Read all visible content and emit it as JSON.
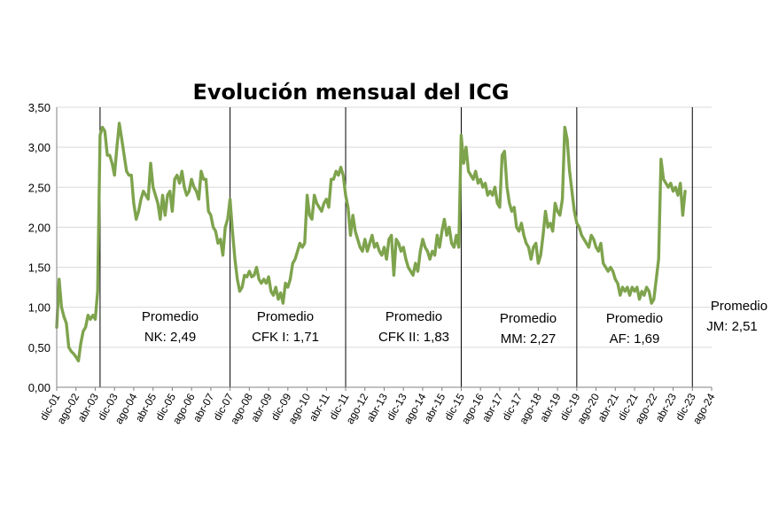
{
  "chart_data": {
    "type": "line",
    "title": "Evolución mensual del ICG",
    "ylim": [
      0,
      3.5
    ],
    "yticks": [
      "0,00",
      "0,50",
      "1,00",
      "1,50",
      "2,00",
      "2,50",
      "3,00",
      "3,50"
    ],
    "xlabels": [
      "dic-01",
      "ago-02",
      "abr-03",
      "dic-03",
      "ago-04",
      "abr-05",
      "dic-05",
      "ago-06",
      "abr-07",
      "dic-07",
      "ago-08",
      "abr-09",
      "dic-09",
      "ago-10",
      "abr-11",
      "dic-11",
      "ago-12",
      "abr-13",
      "dic-13",
      "ago-14",
      "abr-15",
      "dic-15",
      "ago-16",
      "abr-17",
      "dic-17",
      "ago-18",
      "abr-19",
      "dic-19",
      "ago-20",
      "abr-21",
      "dic-21",
      "ago-22",
      "abr-23",
      "dic-23",
      "ago-24"
    ],
    "x_start": "2001-12",
    "x_end": "2024-08",
    "grid": true,
    "legend": "none",
    "series_color": "#7ea34d",
    "series": [
      {
        "points": [
          [
            "2001-12",
            0.75
          ],
          [
            "2002-01",
            1.35
          ],
          [
            "2002-02",
            1.0
          ],
          [
            "2002-03",
            0.88
          ],
          [
            "2002-04",
            0.8
          ],
          [
            "2002-05",
            0.5
          ],
          [
            "2002-06",
            0.45
          ],
          [
            "2002-07",
            0.42
          ],
          [
            "2002-08",
            0.38
          ],
          [
            "2002-09",
            0.33
          ],
          [
            "2002-10",
            0.55
          ],
          [
            "2002-11",
            0.7
          ],
          [
            "2002-12",
            0.75
          ],
          [
            "2003-01",
            0.9
          ],
          [
            "2003-02",
            0.85
          ],
          [
            "2003-03",
            0.9
          ],
          [
            "2003-04",
            0.85
          ],
          [
            "2003-05",
            1.2
          ],
          [
            "2003-06",
            3.15
          ],
          [
            "2003-07",
            3.25
          ],
          [
            "2003-08",
            3.2
          ],
          [
            "2003-09",
            2.9
          ],
          [
            "2003-10",
            2.9
          ],
          [
            "2003-11",
            2.8
          ],
          [
            "2003-12",
            2.65
          ],
          [
            "2004-01",
            3.0
          ],
          [
            "2004-02",
            3.3
          ],
          [
            "2004-03",
            3.1
          ],
          [
            "2004-04",
            2.9
          ],
          [
            "2004-05",
            2.7
          ],
          [
            "2004-06",
            2.65
          ],
          [
            "2004-07",
            2.65
          ],
          [
            "2004-08",
            2.3
          ],
          [
            "2004-09",
            2.1
          ],
          [
            "2004-10",
            2.2
          ],
          [
            "2004-11",
            2.35
          ],
          [
            "2004-12",
            2.45
          ],
          [
            "2005-01",
            2.4
          ],
          [
            "2005-02",
            2.35
          ],
          [
            "2005-03",
            2.8
          ],
          [
            "2005-04",
            2.5
          ],
          [
            "2005-05",
            2.4
          ],
          [
            "2005-06",
            2.3
          ],
          [
            "2005-07",
            2.1
          ],
          [
            "2005-08",
            2.4
          ],
          [
            "2005-09",
            2.15
          ],
          [
            "2005-10",
            2.4
          ],
          [
            "2005-11",
            2.45
          ],
          [
            "2005-12",
            2.2
          ],
          [
            "2006-01",
            2.6
          ],
          [
            "2006-02",
            2.65
          ],
          [
            "2006-03",
            2.55
          ],
          [
            "2006-04",
            2.7
          ],
          [
            "2006-05",
            2.5
          ],
          [
            "2006-06",
            2.4
          ],
          [
            "2006-07",
            2.45
          ],
          [
            "2006-08",
            2.6
          ],
          [
            "2006-09",
            2.5
          ],
          [
            "2006-10",
            2.45
          ],
          [
            "2006-11",
            2.35
          ],
          [
            "2006-12",
            2.7
          ],
          [
            "2007-01",
            2.6
          ],
          [
            "2007-02",
            2.6
          ],
          [
            "2007-03",
            2.2
          ],
          [
            "2007-04",
            2.15
          ],
          [
            "2007-05",
            2.0
          ],
          [
            "2007-06",
            1.95
          ],
          [
            "2007-07",
            1.8
          ],
          [
            "2007-08",
            1.85
          ],
          [
            "2007-09",
            1.65
          ],
          [
            "2007-10",
            2.0
          ],
          [
            "2007-11",
            2.1
          ],
          [
            "2007-12",
            2.35
          ],
          [
            "2008-01",
            1.95
          ],
          [
            "2008-02",
            1.6
          ],
          [
            "2008-03",
            1.35
          ],
          [
            "2008-04",
            1.2
          ],
          [
            "2008-05",
            1.25
          ],
          [
            "2008-06",
            1.4
          ],
          [
            "2008-07",
            1.38
          ],
          [
            "2008-08",
            1.45
          ],
          [
            "2008-09",
            1.38
          ],
          [
            "2008-10",
            1.4
          ],
          [
            "2008-11",
            1.5
          ],
          [
            "2008-12",
            1.35
          ],
          [
            "2009-01",
            1.3
          ],
          [
            "2009-02",
            1.35
          ],
          [
            "2009-03",
            1.3
          ],
          [
            "2009-04",
            1.38
          ],
          [
            "2009-05",
            1.2
          ],
          [
            "2009-06",
            1.15
          ],
          [
            "2009-07",
            1.25
          ],
          [
            "2009-08",
            1.1
          ],
          [
            "2009-09",
            1.18
          ],
          [
            "2009-10",
            1.05
          ],
          [
            "2009-11",
            1.3
          ],
          [
            "2009-12",
            1.25
          ],
          [
            "2010-01",
            1.35
          ],
          [
            "2010-02",
            1.55
          ],
          [
            "2010-03",
            1.6
          ],
          [
            "2010-04",
            1.7
          ],
          [
            "2010-05",
            1.8
          ],
          [
            "2010-06",
            1.75
          ],
          [
            "2010-07",
            1.8
          ],
          [
            "2010-08",
            2.4
          ],
          [
            "2010-09",
            2.15
          ],
          [
            "2010-10",
            2.1
          ],
          [
            "2010-11",
            2.4
          ],
          [
            "2010-12",
            2.3
          ],
          [
            "2011-01",
            2.25
          ],
          [
            "2011-02",
            2.2
          ],
          [
            "2011-03",
            2.3
          ],
          [
            "2011-04",
            2.35
          ],
          [
            "2011-05",
            2.25
          ],
          [
            "2011-06",
            2.6
          ],
          [
            "2011-07",
            2.6
          ],
          [
            "2011-08",
            2.7
          ],
          [
            "2011-09",
            2.65
          ],
          [
            "2011-10",
            2.75
          ],
          [
            "2011-11",
            2.65
          ],
          [
            "2011-12",
            2.4
          ],
          [
            "2012-01",
            2.25
          ],
          [
            "2012-02",
            1.9
          ],
          [
            "2012-03",
            2.15
          ],
          [
            "2012-04",
            1.95
          ],
          [
            "2012-05",
            1.85
          ],
          [
            "2012-06",
            1.75
          ],
          [
            "2012-07",
            1.7
          ],
          [
            "2012-08",
            1.85
          ],
          [
            "2012-09",
            1.7
          ],
          [
            "2012-10",
            1.8
          ],
          [
            "2012-11",
            1.9
          ],
          [
            "2012-12",
            1.75
          ],
          [
            "2013-01",
            1.8
          ],
          [
            "2013-02",
            1.7
          ],
          [
            "2013-03",
            1.65
          ],
          [
            "2013-04",
            1.75
          ],
          [
            "2013-05",
            1.6
          ],
          [
            "2013-06",
            1.85
          ],
          [
            "2013-07",
            1.9
          ],
          [
            "2013-08",
            1.4
          ],
          [
            "2013-09",
            1.85
          ],
          [
            "2013-10",
            1.8
          ],
          [
            "2013-11",
            1.7
          ],
          [
            "2013-12",
            1.75
          ],
          [
            "2014-01",
            1.6
          ],
          [
            "2014-02",
            1.5
          ],
          [
            "2014-03",
            1.45
          ],
          [
            "2014-04",
            1.4
          ],
          [
            "2014-05",
            1.55
          ],
          [
            "2014-06",
            1.45
          ],
          [
            "2014-07",
            1.7
          ],
          [
            "2014-08",
            1.85
          ],
          [
            "2014-09",
            1.75
          ],
          [
            "2014-10",
            1.7
          ],
          [
            "2014-11",
            1.6
          ],
          [
            "2014-12",
            1.7
          ],
          [
            "2015-01",
            1.65
          ],
          [
            "2015-02",
            1.9
          ],
          [
            "2015-03",
            1.75
          ],
          [
            "2015-04",
            1.95
          ],
          [
            "2015-05",
            2.1
          ],
          [
            "2015-06",
            1.9
          ],
          [
            "2015-07",
            2.0
          ],
          [
            "2015-08",
            1.8
          ],
          [
            "2015-09",
            1.75
          ],
          [
            "2015-10",
            1.9
          ],
          [
            "2015-11",
            1.75
          ],
          [
            "2015-12",
            3.15
          ],
          [
            "2016-01",
            2.8
          ],
          [
            "2016-02",
            3.0
          ],
          [
            "2016-03",
            2.7
          ],
          [
            "2016-04",
            2.65
          ],
          [
            "2016-05",
            2.6
          ],
          [
            "2016-06",
            2.7
          ],
          [
            "2016-07",
            2.55
          ],
          [
            "2016-08",
            2.6
          ],
          [
            "2016-09",
            2.5
          ],
          [
            "2016-10",
            2.55
          ],
          [
            "2016-11",
            2.4
          ],
          [
            "2016-12",
            2.45
          ],
          [
            "2017-01",
            2.4
          ],
          [
            "2017-02",
            2.5
          ],
          [
            "2017-03",
            2.3
          ],
          [
            "2017-04",
            2.25
          ],
          [
            "2017-05",
            2.9
          ],
          [
            "2017-06",
            2.95
          ],
          [
            "2017-07",
            2.5
          ],
          [
            "2017-08",
            2.3
          ],
          [
            "2017-09",
            2.2
          ],
          [
            "2017-10",
            2.25
          ],
          [
            "2017-11",
            2.0
          ],
          [
            "2017-12",
            1.95
          ],
          [
            "2018-01",
            2.05
          ],
          [
            "2018-02",
            1.9
          ],
          [
            "2018-03",
            1.8
          ],
          [
            "2018-04",
            1.75
          ],
          [
            "2018-05",
            1.6
          ],
          [
            "2018-06",
            1.75
          ],
          [
            "2018-07",
            1.8
          ],
          [
            "2018-08",
            1.55
          ],
          [
            "2018-09",
            1.65
          ],
          [
            "2018-10",
            1.9
          ],
          [
            "2018-11",
            2.2
          ],
          [
            "2018-12",
            2.0
          ],
          [
            "2019-01",
            2.05
          ],
          [
            "2019-02",
            1.95
          ],
          [
            "2019-03",
            2.3
          ],
          [
            "2019-04",
            2.2
          ],
          [
            "2019-05",
            2.15
          ],
          [
            "2019-06",
            2.35
          ],
          [
            "2019-07",
            3.25
          ],
          [
            "2019-08",
            3.1
          ],
          [
            "2019-09",
            2.7
          ],
          [
            "2019-10",
            2.45
          ],
          [
            "2019-11",
            2.2
          ],
          [
            "2019-12",
            2.05
          ],
          [
            "2020-01",
            2.0
          ],
          [
            "2020-02",
            1.9
          ],
          [
            "2020-03",
            1.85
          ],
          [
            "2020-04",
            1.8
          ],
          [
            "2020-05",
            1.75
          ],
          [
            "2020-06",
            1.9
          ],
          [
            "2020-07",
            1.85
          ],
          [
            "2020-08",
            1.75
          ],
          [
            "2020-09",
            1.7
          ],
          [
            "2020-10",
            1.8
          ],
          [
            "2020-11",
            1.55
          ],
          [
            "2020-12",
            1.5
          ],
          [
            "2021-01",
            1.45
          ],
          [
            "2021-02",
            1.5
          ],
          [
            "2021-03",
            1.45
          ],
          [
            "2021-04",
            1.35
          ],
          [
            "2021-05",
            1.3
          ],
          [
            "2021-06",
            1.15
          ],
          [
            "2021-07",
            1.25
          ],
          [
            "2021-08",
            1.2
          ],
          [
            "2021-09",
            1.25
          ],
          [
            "2021-10",
            1.15
          ],
          [
            "2021-11",
            1.25
          ],
          [
            "2021-12",
            1.2
          ],
          [
            "2022-01",
            1.25
          ],
          [
            "2022-02",
            1.1
          ],
          [
            "2022-03",
            1.2
          ],
          [
            "2022-04",
            1.15
          ],
          [
            "2022-05",
            1.25
          ],
          [
            "2022-06",
            1.2
          ],
          [
            "2022-07",
            1.05
          ],
          [
            "2022-08",
            1.1
          ],
          [
            "2022-09",
            1.35
          ],
          [
            "2022-10",
            1.6
          ],
          [
            "2022-11",
            2.85
          ],
          [
            "2022-12",
            2.6
          ],
          [
            "2023-01",
            2.55
          ],
          [
            "2023-02",
            2.5
          ],
          [
            "2023-03",
            2.55
          ],
          [
            "2023-04",
            2.45
          ],
          [
            "2023-05",
            2.5
          ],
          [
            "2023-06",
            2.4
          ],
          [
            "2023-07",
            2.55
          ],
          [
            "2023-08",
            2.15
          ],
          [
            "2023-09",
            2.45
          ]
        ]
      }
    ],
    "period_dividers": [
      "2003-06",
      "2007-12",
      "2011-12",
      "2015-12",
      "2019-12",
      "2023-12"
    ],
    "annotations": [
      {
        "line1": "Promedio",
        "line2": "NK: 2,49"
      },
      {
        "line1": "Promedio",
        "line2": "CFK I: 1,71"
      },
      {
        "line1": "Promedio",
        "line2": "CFK II: 1,83"
      },
      {
        "line1": "Promedio",
        "line2": "MM: 2,27"
      },
      {
        "line1": "Promedio",
        "line2": "AF: 1,69"
      },
      {
        "line1": "Promedio",
        "line2": "JM: 2,51"
      }
    ]
  }
}
